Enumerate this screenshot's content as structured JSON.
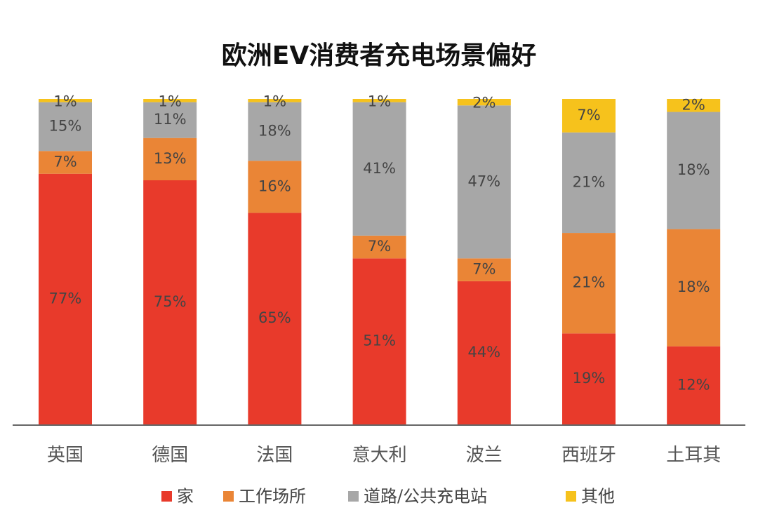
{
  "chart_data": {
    "type": "bar",
    "stacked": true,
    "normalized": true,
    "title": "欧洲EV消费者充电场景偏好",
    "xlabel": "",
    "ylabel": "",
    "categories": [
      "英国",
      "德国",
      "法国",
      "意大利",
      "波兰",
      "西班牙",
      "土耳其"
    ],
    "series": [
      {
        "name": "家",
        "color": "#e83a2b",
        "values": [
          77,
          75,
          65,
          51,
          44,
          19,
          12
        ]
      },
      {
        "name": "工作场所",
        "color": "#ea8536",
        "values": [
          7,
          13,
          16,
          7,
          7,
          21,
          18
        ]
      },
      {
        "name": "道路/公共充电站",
        "color": "#a7a7a7",
        "values": [
          15,
          11,
          18,
          41,
          47,
          21,
          18
        ]
      },
      {
        "name": "其他",
        "color": "#f6c21c",
        "values": [
          1,
          1,
          1,
          1,
          2,
          7,
          2
        ]
      }
    ],
    "value_suffix": "%",
    "legend_position": "bottom",
    "grid": false
  }
}
